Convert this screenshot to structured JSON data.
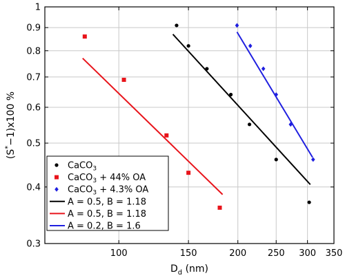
{
  "chart_data": {
    "type": "scatter",
    "x_scale": "log",
    "y_scale": "log",
    "xlim": [
      65,
      350
    ],
    "ylim": [
      0.3,
      1.0
    ],
    "grid": true,
    "legend_position": "bottom-left",
    "xlabel": {
      "main": "D",
      "sub": "d",
      "rest": " (nm)"
    },
    "ylabel": {
      "pre": "(S",
      "sup": "*",
      "post": "−1)x100 %"
    },
    "x_ticks": [
      {
        "value": 100,
        "label": "100"
      },
      {
        "value": 150,
        "label": "150"
      },
      {
        "value": 200,
        "label": "200"
      },
      {
        "value": 250,
        "label": "250"
      },
      {
        "value": 300,
        "label": "300"
      },
      {
        "value": 350,
        "label": "350"
      }
    ],
    "y_ticks": [
      {
        "value": 0.3,
        "label": "0.3"
      },
      {
        "value": 0.4,
        "label": "0.4"
      },
      {
        "value": 0.5,
        "label": "0.5"
      },
      {
        "value": 0.6,
        "label": "0.6"
      },
      {
        "value": 0.7,
        "label": "0.7"
      },
      {
        "value": 0.8,
        "label": "0.8"
      },
      {
        "value": 0.9,
        "label": "0.9"
      },
      {
        "value": 1.0,
        "label": "1"
      }
    ],
    "series": [
      {
        "name": {
          "main": "CaCO",
          "sub": "3",
          "rest": ""
        },
        "marker": "circle",
        "color": "#000000",
        "points": [
          {
            "x": 140,
            "y": 0.91
          },
          {
            "x": 150,
            "y": 0.82
          },
          {
            "x": 167,
            "y": 0.73
          },
          {
            "x": 192,
            "y": 0.64
          },
          {
            "x": 214,
            "y": 0.55
          },
          {
            "x": 250,
            "y": 0.46
          },
          {
            "x": 303,
            "y": 0.37
          }
        ]
      },
      {
        "name": {
          "main": "CaCO",
          "sub": "3",
          "rest": " + 44% OA"
        },
        "marker": "square",
        "color": "#e8141b",
        "points": [
          {
            "x": 82,
            "y": 0.86
          },
          {
            "x": 103,
            "y": 0.69
          },
          {
            "x": 132,
            "y": 0.52
          },
          {
            "x": 150,
            "y": 0.43
          },
          {
            "x": 180,
            "y": 0.36
          }
        ]
      },
      {
        "name": {
          "main": "CaCO",
          "sub": "3",
          "rest": " + 4.3% OA"
        },
        "marker": "diamond",
        "color": "#1f1fe0",
        "points": [
          {
            "x": 199,
            "y": 0.91
          },
          {
            "x": 215,
            "y": 0.82
          },
          {
            "x": 232,
            "y": 0.73
          },
          {
            "x": 250,
            "y": 0.64
          },
          {
            "x": 272,
            "y": 0.55
          },
          {
            "x": 310,
            "y": 0.46
          }
        ]
      }
    ],
    "lines": [
      {
        "name": "A = 0.5, B = 1.18",
        "color": "#000000",
        "x": [
          137,
          305
        ],
        "y": [
          0.87,
          0.405
        ]
      },
      {
        "name": "A = 0.5, B = 1.18",
        "color": "#e8141b",
        "x": [
          81,
          183
        ],
        "y": [
          0.77,
          0.385
        ]
      },
      {
        "name": "A = 0.2, B = 1.6",
        "color": "#1f1fe0",
        "x": [
          199,
          309
        ],
        "y": [
          0.88,
          0.465
        ]
      }
    ]
  }
}
